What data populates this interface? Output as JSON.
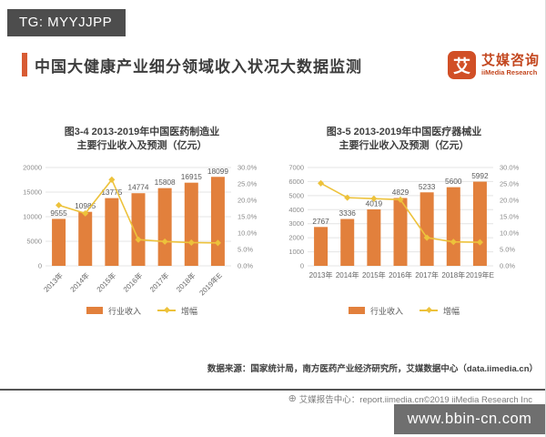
{
  "overlay": {
    "tg_label": "TG: MYYJJPP",
    "watermark_text": "www.bbin-cn.com"
  },
  "header": {
    "title": "中国大健康产业细分领域收入状况大数据监测",
    "accent_color": "#D85B33",
    "logo": {
      "icon_char": "艾",
      "name_cn": "艾媒咨询",
      "name_en": "iiMedia Research",
      "color": "#C3471F"
    }
  },
  "chart_data": [
    {
      "type": "bar+line",
      "title_lines": [
        "图3-4 2013-2019年中国医药制造业",
        "主要行业收入及预测（亿元）"
      ],
      "categories": [
        "2013年",
        "2014年",
        "2015年",
        "2016年",
        "2017年",
        "2018年",
        "2019年E"
      ],
      "series": [
        {
          "name": "行业收入",
          "type": "bar",
          "axis": "left",
          "color": "#E2803C",
          "values": [
            9555,
            10985,
            13775,
            14774,
            15808,
            16915,
            18099
          ]
        },
        {
          "name": "增幅",
          "type": "line",
          "axis": "right",
          "color": "#EDC23B",
          "values": [
            18.5,
            16.0,
            26.3,
            8.0,
            7.4,
            7.1,
            7.0
          ]
        }
      ],
      "y_left": {
        "min": 0,
        "max": 20000,
        "ticks": [
          "20000",
          "15000",
          "10000",
          "5000",
          "0"
        ]
      },
      "y_right": {
        "min": 0,
        "max": 30,
        "ticks": [
          "30.0%",
          "25.0%",
          "20.0%",
          "15.0%",
          "10.0%",
          "5.0%",
          "0.0%"
        ]
      },
      "x_label_rotate": true,
      "grid": true,
      "legend_position": "bottom"
    },
    {
      "type": "bar+line",
      "title_lines": [
        "图3-5 2013-2019年中国医疗器械业",
        "主要行业收入及预测（亿元）"
      ],
      "categories": [
        "2013年",
        "2014年",
        "2015年",
        "2016年",
        "2017年",
        "2018年",
        "2019年E"
      ],
      "series": [
        {
          "name": "行业收入",
          "type": "bar",
          "axis": "left",
          "color": "#E2803C",
          "values": [
            2767,
            3336,
            4019,
            4829,
            5233,
            5600,
            5992
          ]
        },
        {
          "name": "增幅",
          "type": "line",
          "axis": "right",
          "color": "#EDC23B",
          "values": [
            25.2,
            20.8,
            20.5,
            20.2,
            8.6,
            7.3,
            7.2
          ]
        }
      ],
      "y_left": {
        "min": 0,
        "max": 7000,
        "ticks": [
          "7000",
          "6000",
          "5000",
          "4000",
          "3000",
          "2000",
          "1000",
          "0"
        ]
      },
      "y_right": {
        "min": 0,
        "max": 30,
        "ticks": [
          "30.0%",
          "25.0%",
          "20.0%",
          "15.0%",
          "10.0%",
          "5.0%",
          "0.0%"
        ]
      },
      "x_label_rotate": false,
      "grid": true,
      "legend_position": "bottom"
    }
  ],
  "footer": {
    "source": "数据来源：国家统计局，南方医药产业经济研究所，艾媒数据中心（data.iimedia.cn）",
    "report_center": "艾媒报告中心：report.iimedia.cn©2019 iiMedia Research Inc"
  }
}
